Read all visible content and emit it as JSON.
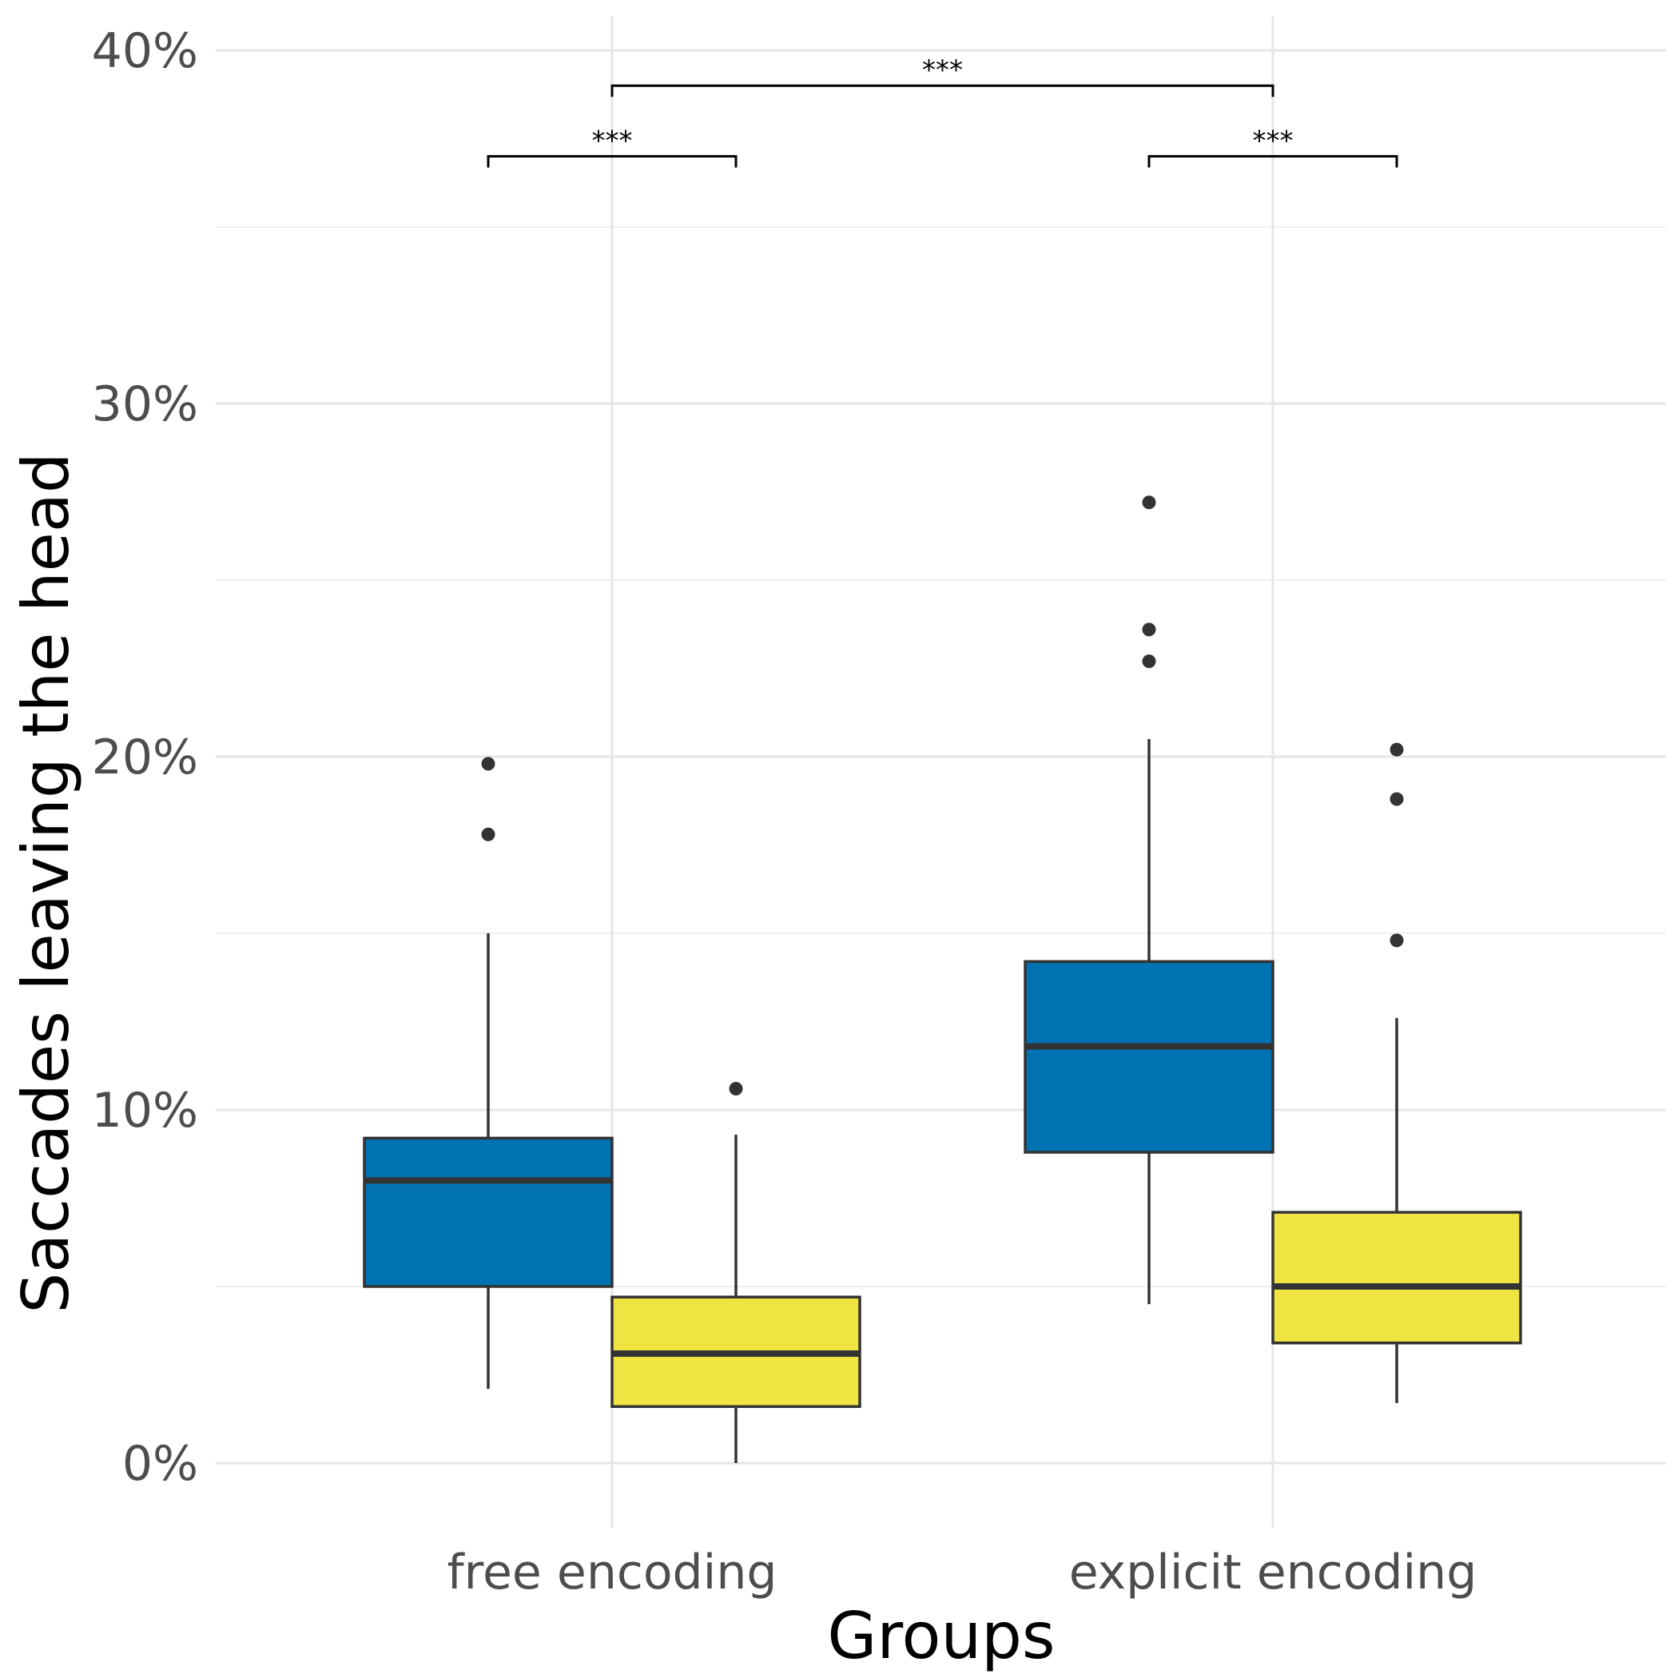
{
  "chart_data": {
    "type": "boxplot",
    "title": "",
    "xlabel": "Groups",
    "ylabel": "Saccades leaving the head",
    "ylim": [
      -0.019,
      0.4
    ],
    "y_ticks": [
      0,
      0.1,
      0.2,
      0.3,
      0.4
    ],
    "y_tick_labels": [
      "0%",
      "10%",
      "20%",
      "30%",
      "40%"
    ],
    "y_minor_ticks": [
      0.05,
      0.15,
      0.25,
      0.35
    ],
    "categories": [
      "free encoding",
      "explicit encoding"
    ],
    "grid": true,
    "legend": "none",
    "series": [
      {
        "color": "#0072B2",
        "boxes": [
          {
            "category": "free encoding",
            "whisker_low": 0.021,
            "q1": 0.05,
            "median": 0.08,
            "q3": 0.092,
            "whisker_high": 0.15,
            "outliers": [
              0.198,
              0.178
            ]
          },
          {
            "category": "explicit encoding",
            "whisker_low": 0.045,
            "q1": 0.088,
            "median": 0.118,
            "q3": 0.142,
            "whisker_high": 0.205,
            "outliers": [
              0.272,
              0.236,
              0.227
            ]
          }
        ]
      },
      {
        "color": "#F0E442",
        "boxes": [
          {
            "category": "free encoding",
            "whisker_low": 0.0,
            "q1": 0.016,
            "median": 0.031,
            "q3": 0.047,
            "whisker_high": 0.093,
            "outliers": [
              0.106
            ]
          },
          {
            "category": "explicit encoding",
            "whisker_low": 0.017,
            "q1": 0.034,
            "median": 0.05,
            "q3": 0.071,
            "whisker_high": 0.126,
            "outliers": [
              0.202,
              0.188,
              0.148
            ]
          }
        ]
      }
    ],
    "significance": [
      {
        "label": "***",
        "from": {
          "category": "free encoding",
          "series": 0
        },
        "to": {
          "category": "free encoding",
          "series": 1
        },
        "y": 0.37
      },
      {
        "label": "***",
        "from": {
          "category": "explicit encoding",
          "series": 0
        },
        "to": {
          "category": "explicit encoding",
          "series": 1
        },
        "y": 0.37
      },
      {
        "label": "***",
        "from": {
          "category": "free encoding"
        },
        "to": {
          "category": "explicit encoding"
        },
        "y": 0.39
      }
    ]
  }
}
